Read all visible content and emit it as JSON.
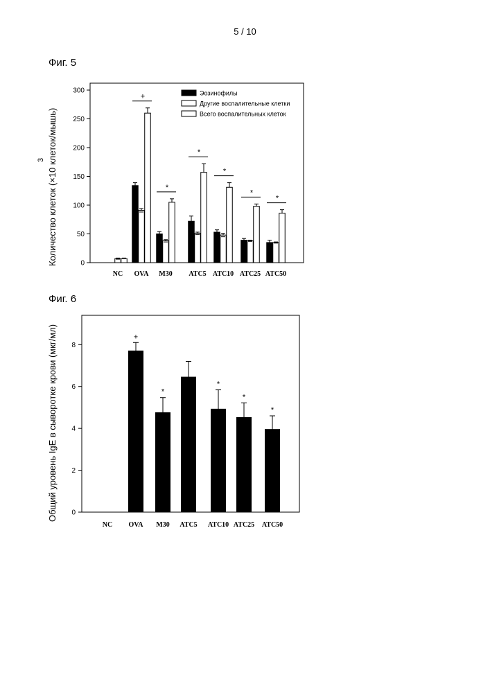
{
  "page": {
    "number": "5 / 10"
  },
  "fig5": {
    "title": "Фиг. 5",
    "ylabel": "Количество клеток (×10  клеток/мышь)",
    "ylabel_exp": "3",
    "legend": [
      {
        "name": "Эозинофилы",
        "fill": "#000000"
      },
      {
        "name": "Другие воспалительные клетки",
        "fill": "#ffffff"
      },
      {
        "name": "Всего воспалительных клеток",
        "fill": "#ffffff"
      }
    ]
  },
  "fig6": {
    "title": "Фиг. 6",
    "ylabel": "Общий уровень IgE в сыворотке крови (мкг/мл)"
  },
  "chart_data": [
    {
      "type": "bar",
      "categories": [
        "NC",
        "OVA",
        "M30",
        "ATC5",
        "ATC10",
        "ATC25",
        "ATC50"
      ],
      "series": [
        {
          "name": "Эозинофилы",
          "color": "#000000",
          "values": [
            0,
            134,
            50,
            72,
            53,
            39,
            35
          ],
          "errors": [
            0,
            5,
            4,
            9,
            4,
            3,
            4
          ]
        },
        {
          "name": "Другие воспалительные клетки",
          "color": "#ffffff",
          "values": [
            7,
            91,
            38,
            51,
            48,
            38,
            35
          ],
          "errors": [
            1,
            3,
            2,
            2,
            3,
            1,
            1
          ]
        },
        {
          "name": "Всего воспалительных клеток",
          "color": "#ffffff",
          "values": [
            7,
            260,
            105,
            157,
            131,
            98,
            86
          ],
          "errors": [
            1,
            9,
            6,
            15,
            8,
            4,
            6
          ]
        }
      ],
      "significance": [
        "",
        "+",
        "*",
        "*",
        "*",
        "*",
        "*"
      ],
      "ylim": [
        0,
        300
      ],
      "yticks": [
        0,
        50,
        100,
        150,
        200,
        250,
        300
      ],
      "legend_position": "top-right"
    },
    {
      "type": "bar",
      "categories": [
        "NC",
        "OVA",
        "M30",
        "ATC5",
        "ATC10",
        "ATC25",
        "ATC50"
      ],
      "values": [
        0,
        7.7,
        4.75,
        6.45,
        4.92,
        4.52,
        3.95
      ],
      "errors": [
        0,
        0.4,
        0.72,
        0.75,
        0.92,
        0.7,
        0.65
      ],
      "significance": [
        "",
        "+",
        "*",
        "",
        "*",
        "*",
        "*"
      ],
      "color": "#000000",
      "ylim": [
        0,
        9.4
      ],
      "yticks": [
        0,
        2,
        4,
        6,
        8
      ]
    }
  ]
}
